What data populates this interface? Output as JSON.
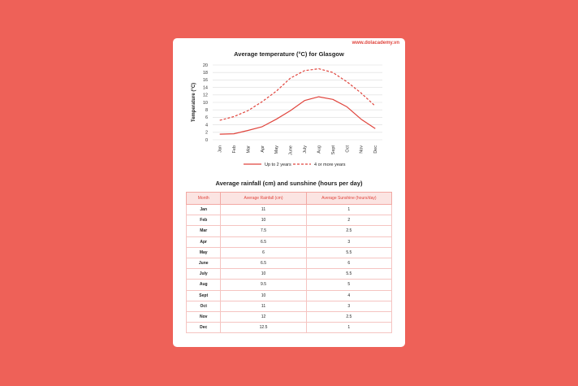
{
  "watermark": "www.dolacademy.vn",
  "chart_data": {
    "type": "line",
    "title": "Average temperature (°C) for Glasgow",
    "ylabel": "Temperature (°C)",
    "xlabel": "",
    "categories": [
      "Jan",
      "Feb",
      "Mar",
      "Apr",
      "May",
      "June",
      "July",
      "Aug",
      "Sept",
      "Oct",
      "Nov",
      "Dec"
    ],
    "ylim": [
      0,
      20
    ],
    "yticks": [
      0,
      2,
      4,
      6,
      8,
      10,
      12,
      14,
      16,
      18,
      20
    ],
    "grid": true,
    "legend_placement": "bottom",
    "series": [
      {
        "name": "Up to 2 years",
        "style": "solid",
        "color": "#e0453d",
        "values": [
          1.5,
          1.6,
          2.5,
          3.5,
          5.5,
          7.8,
          10.5,
          11.5,
          10.8,
          8.8,
          5.5,
          3
        ]
      },
      {
        "name": "4 or more years",
        "style": "dashed",
        "color": "#e0453d",
        "values": [
          5.2,
          6.2,
          7.8,
          10.2,
          13,
          16.5,
          18.5,
          19,
          18,
          15.5,
          12.5,
          9
        ]
      }
    ]
  },
  "table": {
    "title": "Average rainfall (cm) and sunshine (hours per day)",
    "headers": [
      "Month",
      "Average Rainfall (cm)",
      "Average Sunshine (hours/day)"
    ],
    "rows": [
      [
        "Jan",
        "11",
        "1"
      ],
      [
        "Feb",
        "10",
        "2"
      ],
      [
        "Mar",
        "7.5",
        "2.5"
      ],
      [
        "Apr",
        "6.5",
        "3"
      ],
      [
        "May",
        "6",
        "5.5"
      ],
      [
        "June",
        "6.5",
        "6"
      ],
      [
        "July",
        "10",
        "5.5"
      ],
      [
        "Aug",
        "9.5",
        "5"
      ],
      [
        "Sept",
        "10",
        "4"
      ],
      [
        "Oct",
        "11",
        "3"
      ],
      [
        "Nov",
        "12",
        "2.5"
      ],
      [
        "Dec",
        "12.5",
        "1"
      ]
    ]
  },
  "colors": {
    "background": "#ee6158",
    "accent": "#e0453d",
    "header_bg": "#fbe4e2"
  }
}
